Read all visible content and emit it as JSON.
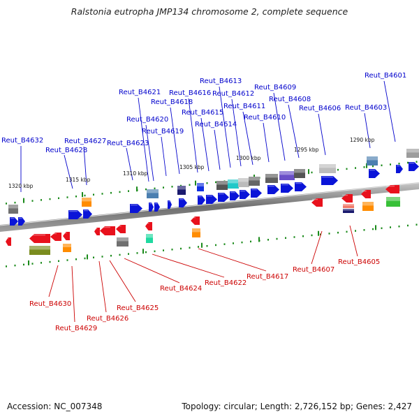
{
  "title": "Ralstonia eutropha JMP134 chromosome 2, complete sequence",
  "footer": {
    "accession": "Accession: NC_007348",
    "summary": "Topology: circular; Length: 2,726,152 bp; Genes: 2,427"
  },
  "colors": {
    "forward_gene": "#0a14d8",
    "reverse_gene": "#e8111c",
    "forward_label": "#0000cc",
    "reverse_label": "#cc0000",
    "tick_mark": "#1a8a1a",
    "backbone": "#8a8a8a"
  },
  "scale_labels": [
    "1320 kbp",
    "1315 kbp",
    "1310 kbp",
    "1305 kbp",
    "1300 kbp",
    "1295 kbp",
    "1290 kbp"
  ],
  "forward_labels": [
    "Reut_B4632",
    "Reut_B4628",
    "Reut_B4627",
    "Reut_B4623",
    "Reut_B4621",
    "Reut_B4620",
    "Reut_B4619",
    "Reut_B4618",
    "Reut_B4616",
    "Reut_B4615",
    "Reut_B4614",
    "Reut_B4613",
    "Reut_B4612",
    "Reut_B4611",
    "Reut_B4610",
    "Reut_B4609",
    "Reut_B4608",
    "Reut_B4606",
    "Reut_B4603",
    "Reut_B4601"
  ],
  "reverse_labels": [
    "Reut_B4630",
    "Reut_B4629",
    "Reut_B4626",
    "Reut_B4625",
    "Reut_B4624",
    "Reut_B4622",
    "Reut_B4617",
    "Reut_B4607",
    "Reut_B4605"
  ]
}
